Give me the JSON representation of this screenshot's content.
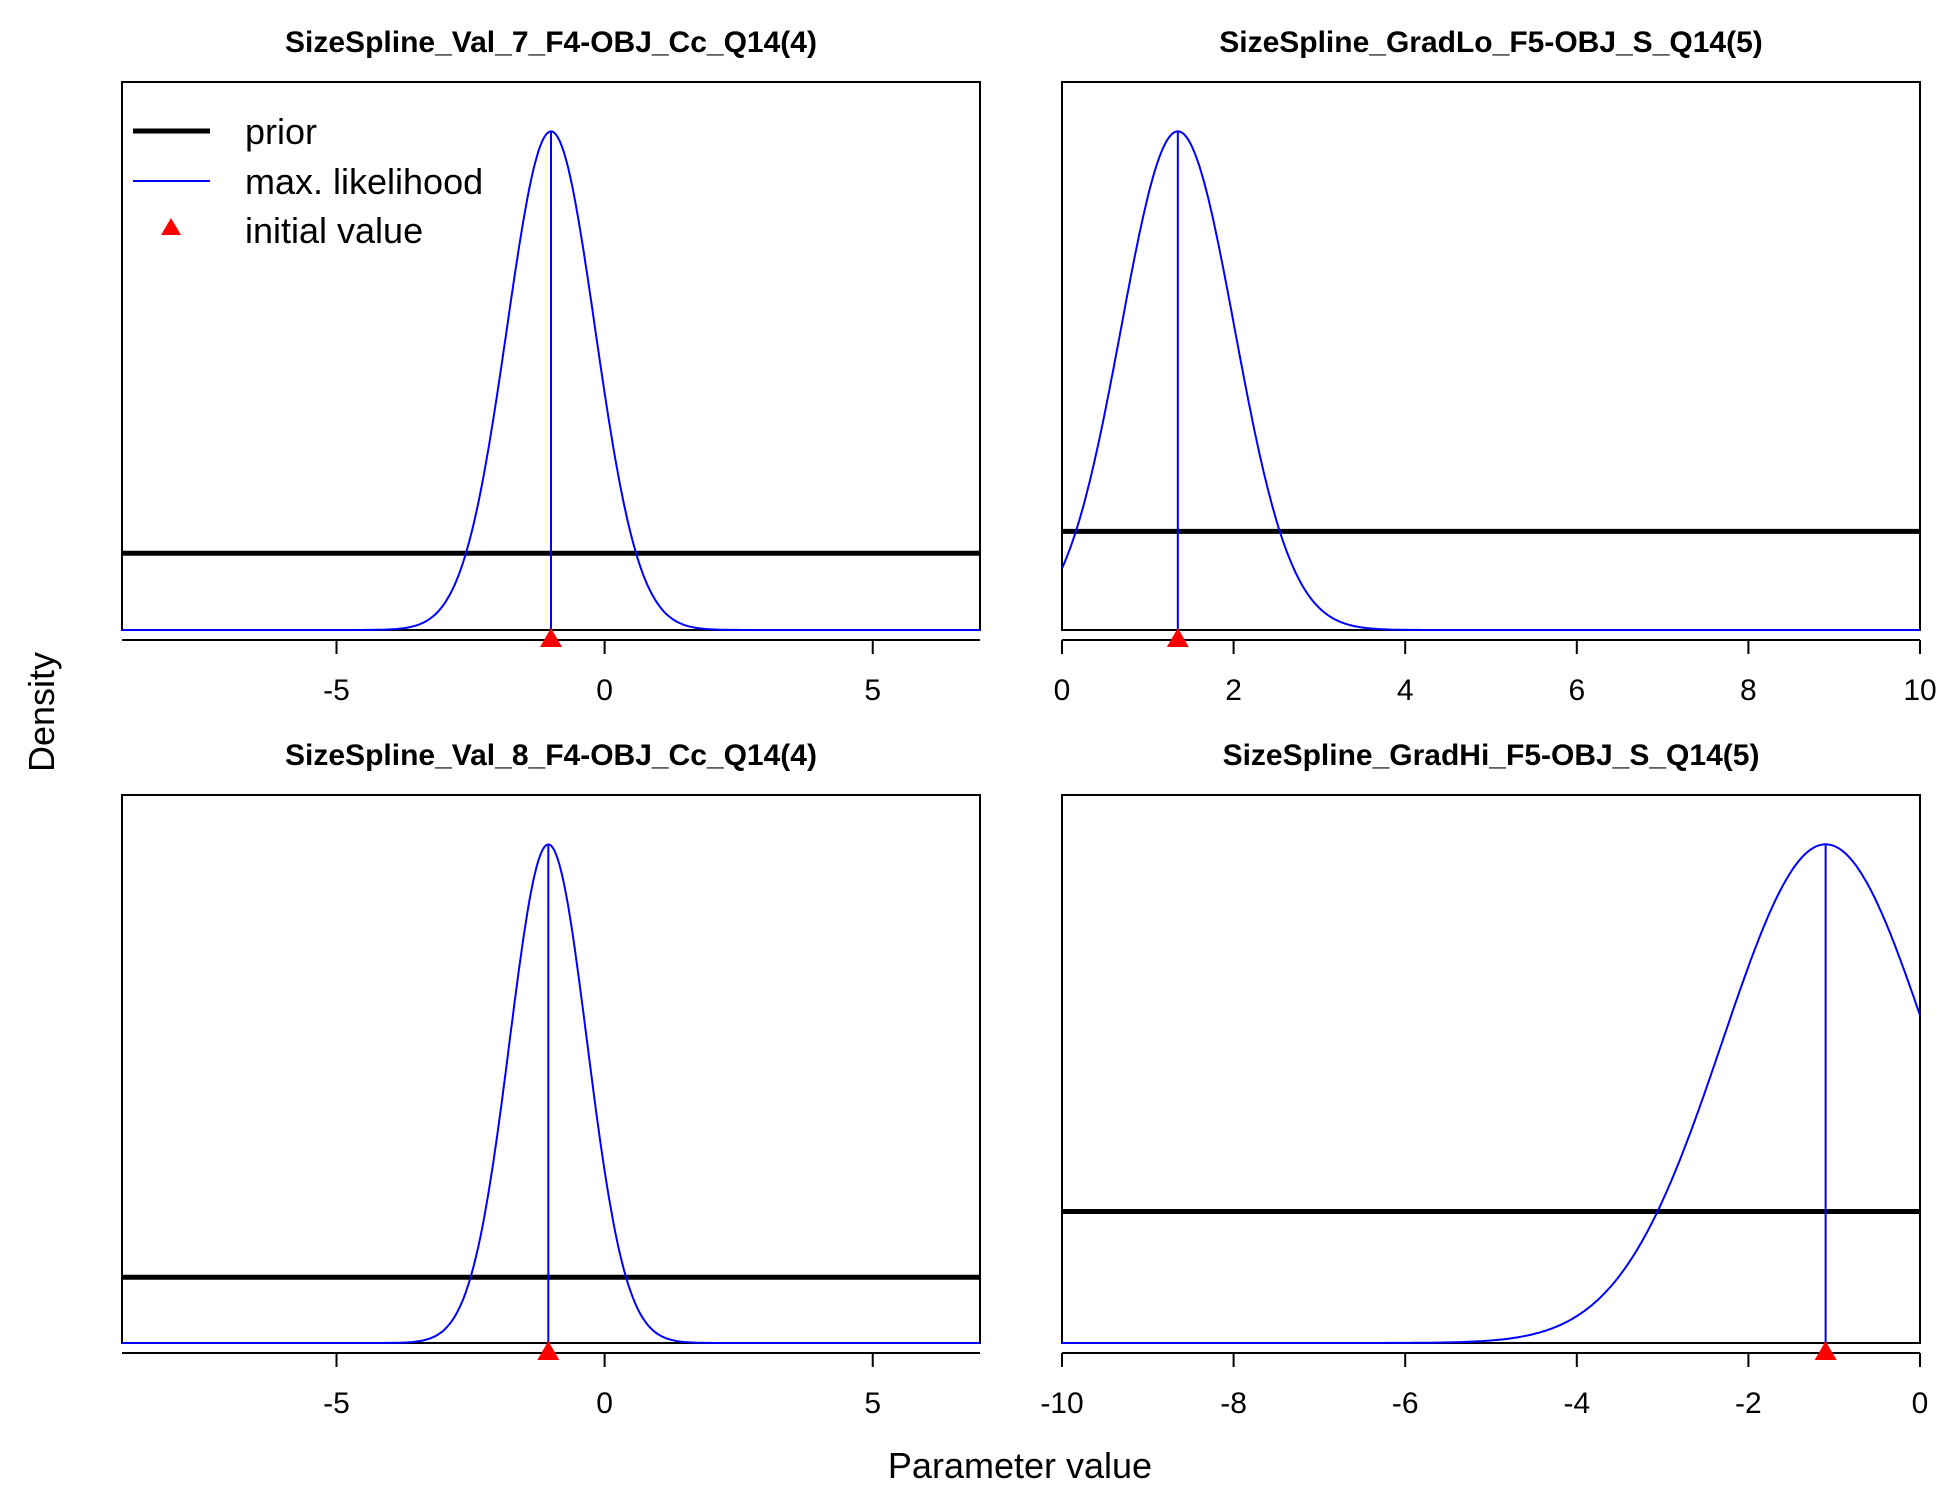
{
  "figure": {
    "xlabel": "Parameter value",
    "ylabel": "Density",
    "legend": {
      "placement": "top-left of first panel",
      "items": [
        {
          "label": "prior",
          "style": "thick black line"
        },
        {
          "label": "max. likelihood",
          "style": "thin blue line"
        },
        {
          "label": "initial value",
          "style": "red triangle"
        }
      ]
    },
    "colors": {
      "prior": "#000000",
      "max_likelihood": "#0000ff",
      "initial_value": "#ff0000"
    }
  },
  "chart_data": [
    {
      "type": "line",
      "title": "SizeSpline_Val_7_F4-OBJ_Cc_Q14(4)",
      "xlim": [
        -9,
        7
      ],
      "xticks": [
        -5,
        0,
        5
      ],
      "tick_labels": [
        "-5",
        "0",
        "5"
      ],
      "prior_level": 0.14,
      "likelihood": {
        "mode": -1.0,
        "sd": 0.82
      },
      "initial_value": -1.0,
      "mle_line": -1.0
    },
    {
      "type": "line",
      "title": "SizeSpline_GradLo_F5-OBJ_S_Q14(5)",
      "xlim": [
        0,
        10
      ],
      "xticks": [
        0,
        2,
        4,
        6,
        8,
        10
      ],
      "tick_labels": [
        "0",
        "2",
        "4",
        "6",
        "8",
        "10"
      ],
      "prior_level": 0.18,
      "likelihood": {
        "mode": 1.35,
        "sd": 0.66
      },
      "initial_value": 1.35,
      "mle_line": 1.35
    },
    {
      "type": "line",
      "title": "SizeSpline_Val_8_F4-OBJ_Cc_Q14(4)",
      "xlim": [
        -9,
        7
      ],
      "xticks": [
        -5,
        0,
        5
      ],
      "tick_labels": [
        "-5",
        "0",
        "5"
      ],
      "prior_level": 0.12,
      "likelihood": {
        "mode": -1.05,
        "sd": 0.72
      },
      "initial_value": -1.05,
      "mle_line": -1.05
    },
    {
      "type": "line",
      "title": "SizeSpline_GradHi_F5-OBJ_S_Q14(5)",
      "xlim": [
        -10,
        0
      ],
      "xticks": [
        -10,
        -8,
        -6,
        -4,
        -2,
        0
      ],
      "tick_labels": [
        "-10",
        "-8",
        "-6",
        "-4",
        "-2",
        "0"
      ],
      "prior_level": 0.24,
      "likelihood": {
        "mode": -1.1,
        "sd": 1.2
      },
      "initial_value": -1.1,
      "mle_line": -1.1
    }
  ]
}
